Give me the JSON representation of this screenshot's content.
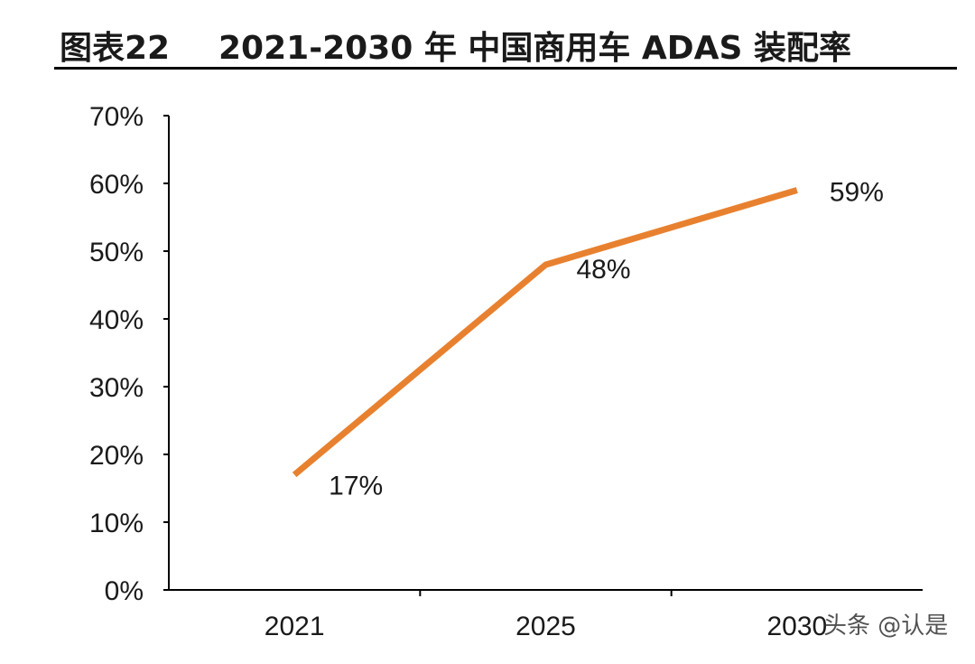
{
  "header": {
    "figure_number": "图表22",
    "title": "2021-2030 年 中国商用车 ADAS 装配率"
  },
  "chart_data": {
    "type": "line",
    "title": "2021-2030 年 中国商用车 ADAS 装配率",
    "xlabel": "",
    "ylabel": "",
    "categories": [
      "2021",
      "2025",
      "2030"
    ],
    "series": [
      {
        "values": [
          17,
          48,
          59
        ],
        "color": "#E8812F"
      }
    ],
    "data_labels": [
      "17%",
      "48%",
      "59%"
    ],
    "ylim": [
      0,
      70
    ],
    "y_ticks": [
      "0%",
      "10%",
      "20%",
      "30%",
      "40%",
      "50%",
      "60%",
      "70%"
    ],
    "grid": false,
    "legend": "none"
  },
  "watermark": {
    "text": "头条 @认是",
    "logo_text": "认是"
  }
}
